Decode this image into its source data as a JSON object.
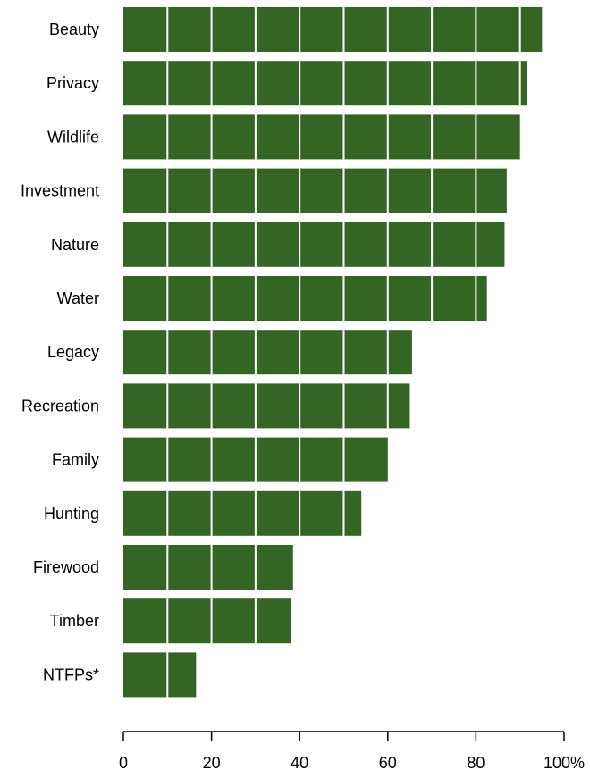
{
  "chart_data": {
    "type": "bar",
    "orientation": "horizontal",
    "categories": [
      "Beauty",
      "Privacy",
      "Wildlife",
      "Investment",
      "Nature",
      "Water",
      "Legacy",
      "Recreation",
      "Family",
      "Hunting",
      "Firewood",
      "Timber",
      "NTFPs*"
    ],
    "values": [
      95,
      91.5,
      90,
      87,
      86.5,
      82.5,
      65.5,
      65,
      60,
      54,
      38.5,
      38,
      16.5
    ],
    "xlim": [
      0,
      100
    ],
    "xticks": [
      0,
      20,
      40,
      60,
      80,
      100
    ],
    "xtick_labels": [
      "0",
      "20",
      "40",
      "60",
      "80",
      "100%"
    ],
    "gridline_step": 10,
    "grid": "white vertical lines inside bars every 10 units",
    "bar_color": "#346524",
    "gridline_color": "#ffffff",
    "title": "",
    "xlabel": "",
    "ylabel": ""
  }
}
